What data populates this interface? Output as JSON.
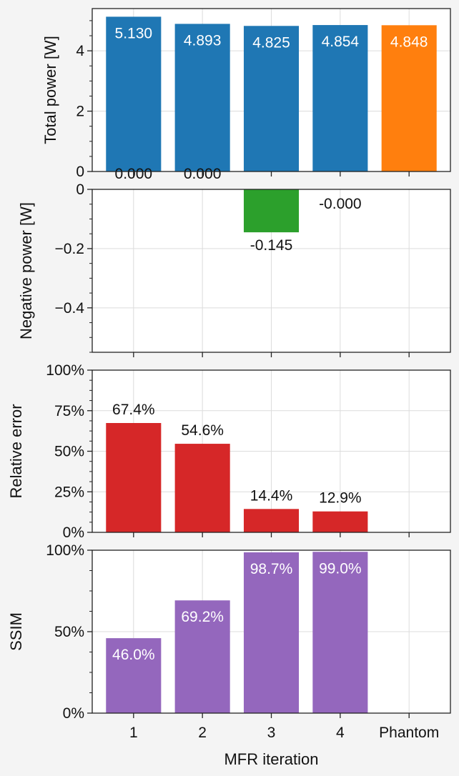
{
  "chart_data": [
    {
      "type": "bar",
      "categories": [
        "1",
        "2",
        "3",
        "4",
        "Phantom"
      ],
      "series": [
        {
          "values": [
            5.13,
            4.893,
            4.825,
            4.854,
            4.848
          ]
        }
      ],
      "bar_colors": [
        "#1f77b4",
        "#1f77b4",
        "#1f77b4",
        "#1f77b4",
        "#ff7f0e"
      ],
      "bar_labels": [
        "5.130",
        "4.893",
        "4.825",
        "4.854",
        "4.848"
      ],
      "extra_labels": [
        {
          "category": "1",
          "text": "0.000"
        },
        {
          "category": "2",
          "text": "0.000"
        }
      ],
      "ylabel": "Total power [W]",
      "ylim": [
        0,
        5.4
      ],
      "yticks": [
        0,
        2,
        4
      ],
      "ytick_labels": [
        "0",
        "2",
        "4"
      ],
      "grid": true
    },
    {
      "type": "bar",
      "categories": [
        "1",
        "2",
        "3",
        "4",
        "Phantom"
      ],
      "series": [
        {
          "values": [
            0,
            0,
            -0.145,
            -0.0,
            0
          ]
        }
      ],
      "bar_colors": [
        "#2ca02c",
        "#2ca02c",
        "#2ca02c",
        "#2ca02c",
        "#2ca02c"
      ],
      "bar_labels": [
        "",
        "",
        "-0.145",
        "-0.000",
        ""
      ],
      "ylabel": "Negative power [W]",
      "ylim": [
        -0.55,
        0
      ],
      "yticks": [
        0,
        -0.2,
        -0.4
      ],
      "ytick_labels": [
        "0",
        "−0.2",
        "−0.4"
      ],
      "grid": true
    },
    {
      "type": "bar",
      "categories": [
        "1",
        "2",
        "3",
        "4",
        "Phantom"
      ],
      "series": [
        {
          "values": [
            67.4,
            54.6,
            14.4,
            12.9,
            null
          ]
        }
      ],
      "bar_colors": [
        "#d62728",
        "#d62728",
        "#d62728",
        "#d62728",
        "#d62728"
      ],
      "bar_labels": [
        "67.4%",
        "54.6%",
        "14.4%",
        "12.9%",
        ""
      ],
      "ylabel": "Relative error",
      "ylim": [
        0,
        100
      ],
      "yticks": [
        0,
        25,
        50,
        75,
        100
      ],
      "ytick_labels": [
        "0%",
        "25%",
        "50%",
        "75%",
        "100%"
      ],
      "grid": true
    },
    {
      "type": "bar",
      "categories": [
        "1",
        "2",
        "3",
        "4",
        "Phantom"
      ],
      "series": [
        {
          "values": [
            46.0,
            69.2,
            98.7,
            99.0,
            null
          ]
        }
      ],
      "bar_colors": [
        "#9467bd",
        "#9467bd",
        "#9467bd",
        "#9467bd",
        "#9467bd"
      ],
      "bar_labels": [
        "46.0%",
        "69.2%",
        "98.7%",
        "99.0%",
        ""
      ],
      "ylabel": "SSIM",
      "xlabel": "MFR iteration",
      "ylim": [
        0,
        100
      ],
      "yticks": [
        0,
        50,
        100
      ],
      "ytick_labels": [
        "0%",
        "50%",
        "100%"
      ],
      "grid": true
    }
  ]
}
